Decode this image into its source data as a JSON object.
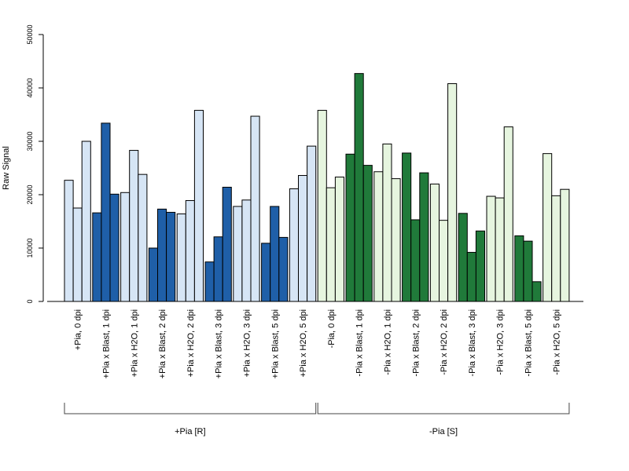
{
  "chart_data": {
    "type": "bar",
    "ylabel": "Raw Signal",
    "ylim": [
      0,
      50000
    ],
    "yticks": [
      0,
      10000,
      20000,
      30000,
      40000,
      50000
    ],
    "ytick_labels": [
      "0",
      "10000",
      "20000",
      "30000",
      "40000",
      "50000"
    ],
    "categories": [
      "+Pia, 0 dpi",
      "+Pia x Blast, 1 dpi",
      "+Pia x H2O, 1 dpi",
      "+Pia x Blast, 2 dpi",
      "+Pia x H2O, 2 dpi",
      "+Pia x Blast, 3 dpi",
      "+Pia x H2O, 3 dpi",
      "+Pia x Blast, 5 dpi",
      "+Pia x H2O, 5 dpi",
      "-Pia, 0 dpi",
      "-Pia x Blast, 1 dpi",
      "-Pia x H2O, 1 dpi",
      "-Pia x Blast, 2 dpi",
      "-Pia x H2O, 2 dpi",
      "-Pia x Blast, 3 dpi",
      "-Pia x H2O, 3 dpi",
      "-Pia x Blast, 5 dpi",
      "-Pia x H2O, 5 dpi"
    ],
    "values": [
      [
        22700,
        17500,
        30000
      ],
      [
        16600,
        33400,
        20100
      ],
      [
        20400,
        28300,
        23800
      ],
      [
        10000,
        17300,
        16700
      ],
      [
        16400,
        18900,
        35800
      ],
      [
        7400,
        12100,
        21400
      ],
      [
        17800,
        19000,
        34700
      ],
      [
        10900,
        17800,
        12000
      ],
      [
        21100,
        23600,
        29100
      ],
      [
        35800,
        21300,
        23300
      ],
      [
        27600,
        42700,
        25500
      ],
      [
        24300,
        29500,
        23000
      ],
      [
        27800,
        15300,
        24100
      ],
      [
        22000,
        15200,
        40800
      ],
      [
        16500,
        9200,
        13200
      ],
      [
        19700,
        19400,
        32700
      ],
      [
        12300,
        11300,
        3700
      ],
      [
        27700,
        19800,
        21000
      ]
    ],
    "bar_colors": [
      "#d6e5f5",
      "#1f5fa8",
      "#d6e5f5",
      "#1f5fa8",
      "#d6e5f5",
      "#1f5fa8",
      "#d6e5f5",
      "#1f5fa8",
      "#d6e5f5",
      "#e6f5df",
      "#207a3a",
      "#e6f5df",
      "#207a3a",
      "#e6f5df",
      "#207a3a",
      "#e6f5df",
      "#207a3a",
      "#e6f5df"
    ],
    "groups": [
      {
        "label": "+Pia [R]",
        "start": 0,
        "end": 8
      },
      {
        "label": "-Pia [S]",
        "start": 9,
        "end": 17
      }
    ],
    "grid": false
  }
}
